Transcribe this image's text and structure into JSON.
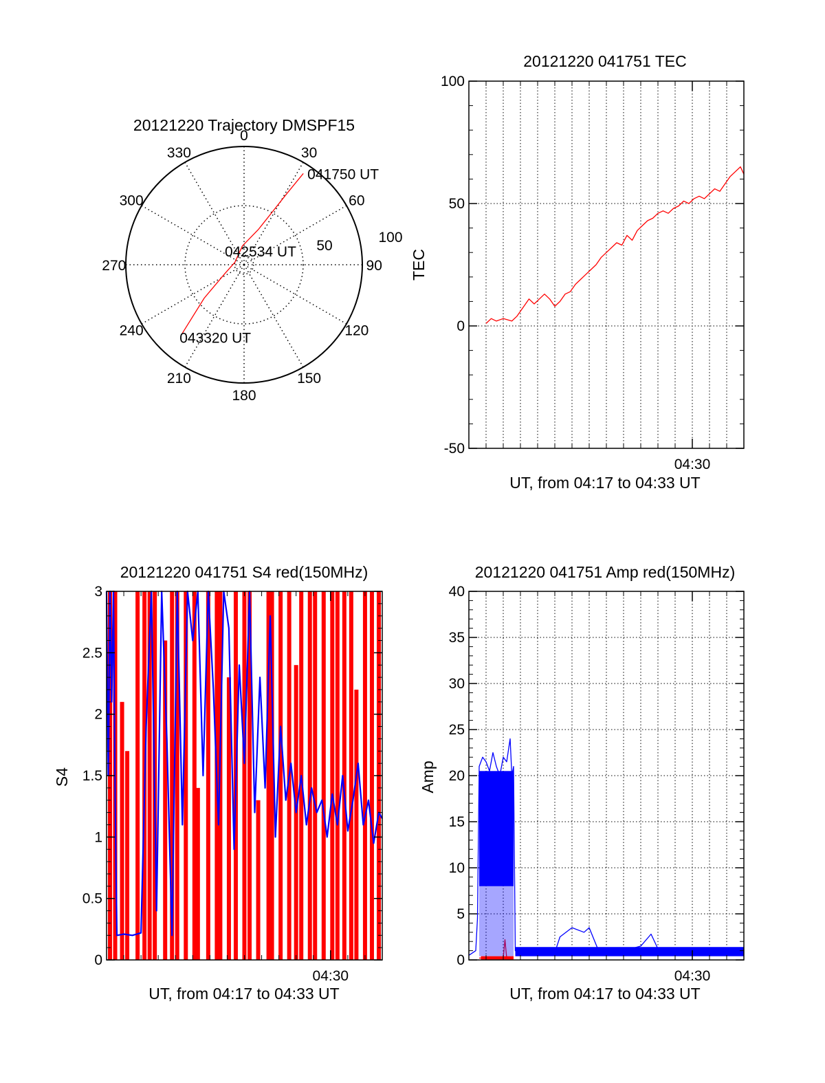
{
  "colors": {
    "red": "#ff0000",
    "blue": "#0000ff",
    "axis": "#000000",
    "grid": "#000000"
  },
  "chart_data": [
    {
      "type": "polar",
      "title": "20121220 Trajectory DMSPF15",
      "angle_labels": [
        "0",
        "30",
        "60",
        "90",
        "120",
        "150",
        "180",
        "210",
        "240",
        "270",
        "300",
        "330"
      ],
      "radial_labels": [
        "50",
        "100"
      ],
      "grid": "dotted",
      "series": [
        {
          "color": "#ff0000",
          "points": [
            {
              "az": 33,
              "r": 92
            },
            {
              "az": 31,
              "r": 70
            },
            {
              "az": 28,
              "r": 50
            },
            {
              "az": 22,
              "r": 32
            },
            {
              "az": -5,
              "r": 16
            },
            {
              "az": -75,
              "r": 8
            },
            {
              "az": -115,
              "r": 18
            },
            {
              "az": -130,
              "r": 44
            },
            {
              "az": -138,
              "r": 78
            }
          ]
        }
      ],
      "annotations": [
        {
          "text": "041750 UT",
          "az": 33,
          "r": 92
        },
        {
          "text": "042534 UT",
          "az": 0,
          "r": 0
        },
        {
          "text": "043320 UT",
          "az": -138,
          "r": 78
        }
      ]
    },
    {
      "type": "line",
      "title": "20121220 041751 TEC",
      "xlabel": "UT, from 04:17 to 04:33 UT",
      "ylabel": "TEC",
      "xlim": [
        0,
        16
      ],
      "ylim": [
        -50,
        100
      ],
      "yticks": [
        "-50",
        "0",
        "50",
        "100"
      ],
      "xticks": [
        {
          "pos": 13,
          "label": "04:30"
        }
      ],
      "grid": "dotted",
      "series": [
        {
          "color": "#ff0000",
          "x": [
            1,
            1.3,
            1.6,
            2,
            2.5,
            2.8,
            3.2,
            3.5,
            3.8,
            4.1,
            4.4,
            4.7,
            5,
            5.3,
            5.6,
            5.9,
            6.2,
            6.5,
            6.8,
            7.1,
            7.4,
            7.7,
            8,
            8.3,
            8.6,
            8.9,
            9.2,
            9.5,
            9.8,
            10.1,
            10.4,
            10.7,
            11,
            11.3,
            11.6,
            11.9,
            12.2,
            12.5,
            12.8,
            13.1,
            13.4,
            13.7,
            14,
            14.3,
            14.6,
            14.9,
            15.2,
            15.5,
            15.8,
            16
          ],
          "values": [
            1,
            3,
            2,
            3,
            2,
            4,
            8,
            11,
            9,
            11,
            13,
            11,
            8,
            10,
            13,
            14,
            17,
            19,
            21,
            23,
            25,
            28,
            30,
            32,
            34,
            33,
            37,
            35,
            39,
            41,
            43,
            44,
            46,
            47,
            46,
            48,
            49,
            51,
            50,
            52,
            53,
            52,
            54,
            56,
            55,
            58,
            61,
            63,
            65,
            62
          ]
        }
      ]
    },
    {
      "type": "line",
      "title": "20121220 041751 S4 red(150MHz)",
      "xlabel": "UT, from 04:17 to 04:33 UT",
      "ylabel": "S4",
      "xlim": [
        0,
        16
      ],
      "ylim": [
        0,
        3
      ],
      "yticks": [
        "0",
        "0.5",
        "1",
        "1.5",
        "2",
        "2.5",
        "3"
      ],
      "xticks": [
        {
          "pos": 13,
          "label": "04:30"
        }
      ],
      "series": [
        {
          "color": "#ff0000",
          "x": [
            0.2,
            0.5,
            0.9,
            1.2,
            1.8,
            2.2,
            2.5,
            2.8,
            3.4,
            3.8,
            4.1,
            4.6,
            5.1,
            5.3,
            5.9,
            6.4,
            6.6,
            7.1,
            7.5,
            8,
            8.3,
            8.8,
            9.4,
            9.6,
            10.1,
            10.6,
            11,
            11.3,
            11.8,
            12.1,
            12.6,
            13.1,
            13.4,
            13.8,
            14.2,
            14.5,
            15,
            15.4,
            15.8
          ],
          "values": [
            3,
            3,
            2.1,
            1.7,
            3,
            3,
            3,
            3,
            2.6,
            3,
            3,
            3,
            3,
            1.4,
            3,
            3,
            3,
            2.3,
            3,
            3,
            3,
            1.3,
            3,
            3,
            3,
            3,
            2.4,
            3,
            3,
            3,
            3,
            3,
            3,
            3,
            3,
            2.2,
            3,
            3,
            3
          ]
        },
        {
          "color": "#0000ff",
          "x": [
            0,
            0.1,
            0.2,
            0.3,
            0.4,
            0.5,
            0.6,
            1.0,
            1.5,
            2.0,
            2.3,
            2.6,
            2.9,
            3.2,
            3.5,
            3.8,
            4.1,
            4.4,
            4.7,
            5.0,
            5.3,
            5.6,
            5.9,
            6.2,
            6.5,
            6.8,
            7.1,
            7.4,
            7.7,
            8.0,
            8.3,
            8.6,
            8.9,
            9.2,
            9.5,
            9.8,
            10.1,
            10.4,
            10.7,
            11.0,
            11.3,
            11.6,
            11.9,
            12.2,
            12.5,
            12.8,
            13.1,
            13.4,
            13.7,
            14.0,
            14.3,
            14.6,
            14.9,
            15.2,
            15.5,
            15.8,
            16.0
          ],
          "values": [
            3,
            1.5,
            3,
            2.1,
            3,
            1.3,
            0.2,
            0.21,
            0.2,
            0.22,
            1.9,
            3,
            0.4,
            3,
            1.8,
            0.2,
            3,
            1.1,
            3,
            2.6,
            3,
            1.5,
            3,
            2.2,
            1.1,
            3,
            2.7,
            0.9,
            2.4,
            1.6,
            3,
            1.2,
            2.3,
            1.4,
            2.8,
            1.0,
            1.9,
            1.3,
            1.6,
            1.2,
            1.5,
            1.1,
            1.4,
            1.2,
            1.3,
            1.0,
            1.35,
            1.1,
            1.5,
            1.05,
            1.3,
            1.6,
            1.1,
            1.3,
            0.95,
            1.2,
            1.15
          ]
        }
      ]
    },
    {
      "type": "line",
      "title": "20121220 041751 Amp red(150MHz)",
      "xlabel": "UT, from 04:17 to 04:33 UT",
      "ylabel": "Amp",
      "xlim": [
        0,
        16
      ],
      "ylim": [
        0,
        40
      ],
      "yticks": [
        "0",
        "5",
        "10",
        "15",
        "20",
        "25",
        "30",
        "35",
        "40"
      ],
      "xticks": [
        {
          "pos": 13,
          "label": "04:30"
        }
      ],
      "grid": "dotted",
      "series": [
        {
          "color": "#0000ff",
          "x": [
            0,
            0.4,
            0.5,
            0.6,
            0.8,
            1.0,
            1.2,
            1.4,
            1.6,
            1.8,
            2.0,
            2.2,
            2.4,
            2.5,
            2.6,
            2.7,
            3.0,
            4.0,
            5.0,
            5.3,
            6.0,
            6.7,
            7.0,
            7.5,
            8.0,
            9.0,
            10.0,
            10.6,
            11.0,
            11.2,
            12.0,
            13.0,
            14.0,
            15.0,
            16.0
          ],
          "values": [
            0.5,
            1,
            4.5,
            21,
            22,
            21.5,
            20.5,
            22.5,
            21,
            20,
            22,
            21.5,
            24,
            20,
            21,
            1,
            0.8,
            0.7,
            0.8,
            2.5,
            3.5,
            3,
            3.5,
            1.2,
            0.9,
            1.0,
            1.5,
            2.8,
            1.2,
            1.3,
            1.1,
            1.2,
            1.3,
            1.1,
            1.2
          ]
        },
        {
          "color": "#ff0000",
          "x": [
            0.6,
            1.0,
            1.5,
            2.0,
            2.1,
            2.2,
            2.5,
            2.6
          ],
          "values": [
            0.2,
            0.2,
            0.2,
            0.2,
            2.2,
            0.2,
            0.2,
            0.2
          ]
        }
      ]
    }
  ]
}
